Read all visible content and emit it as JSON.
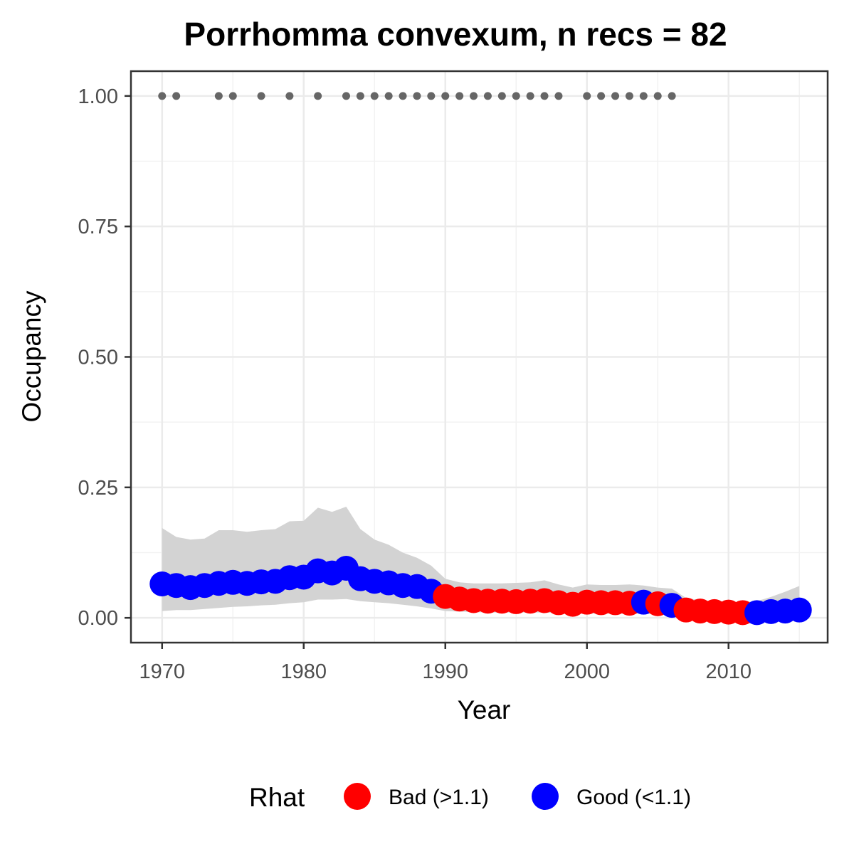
{
  "chart_data": {
    "type": "scatter",
    "title": "Porrhomma convexum, n recs = 82",
    "xlabel": "Year",
    "ylabel": "Occupancy",
    "xlim": [
      1967.8,
      1017.0
    ],
    "ylim": [
      -0.0475,
      1.0475
    ],
    "x_ticks": [
      1970,
      1980,
      1990,
      2000,
      2010
    ],
    "x_tick_labels": [
      "1970",
      "1980",
      "1990",
      "2000",
      "2010"
    ],
    "y_ticks": [
      0,
      0.25,
      0.5,
      0.75,
      1.0
    ],
    "y_tick_labels": [
      "0.00",
      "0.25",
      "0.50",
      "0.75",
      "1.00"
    ],
    "grid": true,
    "legend": {
      "title": "Rhat",
      "position": "bottom",
      "entries": [
        {
          "label": "Bad (>1.1)",
          "color": "#ff0000"
        },
        {
          "label": "Good (<1.1)",
          "color": "#0000ff"
        }
      ]
    },
    "colors": {
      "Bad": "#ff0000",
      "Good": "#0000ff",
      "records": "#666666",
      "ribbon": "#d3d3d3"
    },
    "occupancy": {
      "x": [
        1970,
        1971,
        1972,
        1973,
        1974,
        1975,
        1976,
        1977,
        1978,
        1979,
        1980,
        1981,
        1982,
        1983,
        1984,
        1985,
        1986,
        1987,
        1988,
        1989,
        1990,
        1991,
        1992,
        1993,
        1994,
        1995,
        1996,
        1997,
        1998,
        1999,
        2000,
        2001,
        2002,
        2003,
        2004,
        2005,
        2006,
        2007,
        2008,
        2009,
        2010,
        2011,
        2012,
        2013,
        2014,
        2015
      ],
      "y": [
        0.065,
        0.062,
        0.058,
        0.062,
        0.066,
        0.068,
        0.066,
        0.069,
        0.07,
        0.077,
        0.078,
        0.09,
        0.086,
        0.095,
        0.075,
        0.07,
        0.067,
        0.062,
        0.06,
        0.051,
        0.041,
        0.036,
        0.033,
        0.032,
        0.032,
        0.031,
        0.032,
        0.033,
        0.029,
        0.026,
        0.03,
        0.029,
        0.029,
        0.028,
        0.03,
        0.027,
        0.024,
        0.015,
        0.013,
        0.012,
        0.011,
        0.01,
        0.01,
        0.012,
        0.013,
        0.015
      ],
      "rhat": [
        "Good",
        "Good",
        "Good",
        "Good",
        "Good",
        "Good",
        "Good",
        "Good",
        "Good",
        "Good",
        "Good",
        "Good",
        "Good",
        "Good",
        "Good",
        "Good",
        "Good",
        "Good",
        "Good",
        "Good",
        "Bad",
        "Bad",
        "Bad",
        "Bad",
        "Bad",
        "Bad",
        "Bad",
        "Bad",
        "Bad",
        "Bad",
        "Bad",
        "Bad",
        "Bad",
        "Bad",
        "Good",
        "Bad",
        "Good",
        "Bad",
        "Bad",
        "Bad",
        "Bad",
        "Bad",
        "Good",
        "Good",
        "Good",
        "Good"
      ],
      "lower": [
        0.013,
        0.015,
        0.015,
        0.017,
        0.019,
        0.021,
        0.022,
        0.024,
        0.025,
        0.028,
        0.03,
        0.035,
        0.035,
        0.036,
        0.032,
        0.03,
        0.028,
        0.025,
        0.022,
        0.018,
        0.013,
        0.012,
        0.011,
        0.01,
        0.01,
        0.01,
        0.01,
        0.01,
        0.009,
        0.008,
        0.008,
        0.008,
        0.008,
        0.008,
        0.008,
        0.007,
        0.006,
        0.004,
        0.003,
        0.003,
        0.003,
        0.002,
        0.002,
        0.002,
        0.002,
        0.002
      ],
      "upper": [
        0.172,
        0.155,
        0.15,
        0.152,
        0.168,
        0.168,
        0.165,
        0.168,
        0.17,
        0.185,
        0.186,
        0.211,
        0.203,
        0.213,
        0.17,
        0.15,
        0.14,
        0.125,
        0.115,
        0.1,
        0.075,
        0.068,
        0.066,
        0.066,
        0.066,
        0.067,
        0.068,
        0.072,
        0.064,
        0.058,
        0.064,
        0.063,
        0.063,
        0.064,
        0.062,
        0.058,
        0.056,
        0.038,
        0.034,
        0.032,
        0.031,
        0.03,
        0.032,
        0.04,
        0.05,
        0.061
      ]
    },
    "records": {
      "y": 1.0,
      "x": [
        1970,
        1971,
        1974,
        1975,
        1977,
        1979,
        1981,
        1983,
        1984,
        1985,
        1986,
        1987,
        1988,
        1989,
        1990,
        1991,
        1992,
        1993,
        1994,
        1995,
        1996,
        1997,
        1998,
        2000,
        2001,
        2002,
        2003,
        2004,
        2005,
        2006
      ]
    }
  }
}
